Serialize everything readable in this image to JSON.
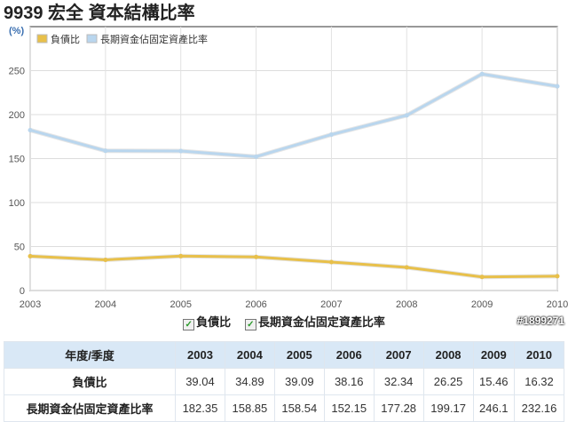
{
  "title": "9939 宏全 資本結構比率",
  "unit": "(%)",
  "chart_data": {
    "type": "line",
    "title": "9939 宏全 資本結構比率",
    "ylabel": "(%)",
    "categories": [
      "2003",
      "2004",
      "2005",
      "2006",
      "2007",
      "2008",
      "2009",
      "2010"
    ],
    "yticks": [
      "0",
      "50",
      "100",
      "150",
      "200",
      "250"
    ],
    "ylim": [
      0,
      300
    ],
    "grid": true,
    "legend_placement": "top-left",
    "series": [
      {
        "name": "負債比",
        "color": "#e8c04a",
        "values": [
          39.04,
          34.89,
          39.09,
          38.16,
          32.34,
          26.25,
          15.46,
          16.32
        ]
      },
      {
        "name": "長期資金佔固定資產比率",
        "color": "#b9d6ee",
        "values": [
          182.35,
          158.85,
          158.54,
          152.15,
          177.28,
          199.17,
          246.1,
          232.16
        ]
      }
    ]
  },
  "table": {
    "header": "年度/季度",
    "years": [
      "2003",
      "2004",
      "2005",
      "2006",
      "2007",
      "2008",
      "2009",
      "2010"
    ],
    "rows": [
      {
        "label": "負債比",
        "values": [
          "39.04",
          "34.89",
          "39.09",
          "38.16",
          "32.34",
          "26.25",
          "15.46",
          "16.32"
        ]
      },
      {
        "label": "長期資金佔固定資產比率",
        "values": [
          "182.35",
          "158.85",
          "158.54",
          "152.15",
          "177.28",
          "199.17",
          "246.1",
          "232.16"
        ]
      }
    ]
  },
  "watermark": "#1899271"
}
